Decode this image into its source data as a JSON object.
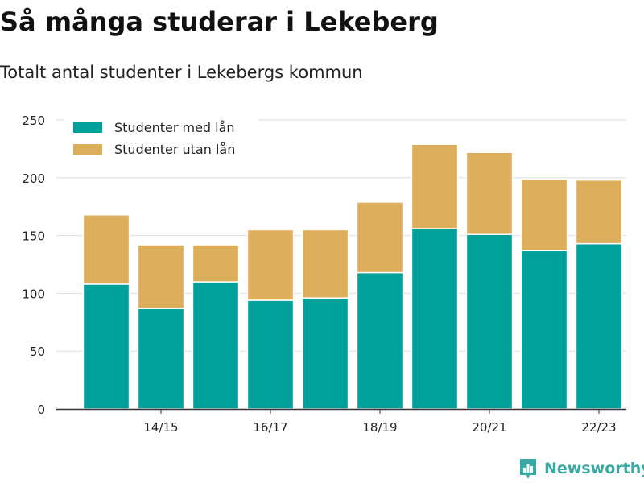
{
  "title": "Så många studerar i Lekeberg",
  "subtitle": "Totalt antal studenter i Lekebergs kommun",
  "brand": "Newsworthy",
  "chart_data": {
    "type": "bar",
    "stacked": true,
    "categories": [
      "13/14",
      "14/15",
      "15/16",
      "16/17",
      "17/18",
      "18/19",
      "19/20",
      "20/21",
      "21/22",
      "22/23"
    ],
    "x_tick_labels": [
      "14/15",
      "16/17",
      "18/19",
      "20/21",
      "22/23"
    ],
    "series": [
      {
        "name": "Studenter med lån",
        "color": "#00a19a",
        "values": [
          108,
          87,
          110,
          94,
          96,
          118,
          156,
          151,
          137,
          143
        ]
      },
      {
        "name": "Studenter utan lån",
        "color": "#dcae5c",
        "values": [
          60,
          55,
          32,
          61,
          59,
          61,
          73,
          71,
          62,
          55
        ]
      }
    ],
    "ylim": [
      0,
      250
    ],
    "yticks": [
      0,
      50,
      100,
      150,
      200,
      250
    ],
    "grid": true,
    "legend_position": "top-left"
  }
}
